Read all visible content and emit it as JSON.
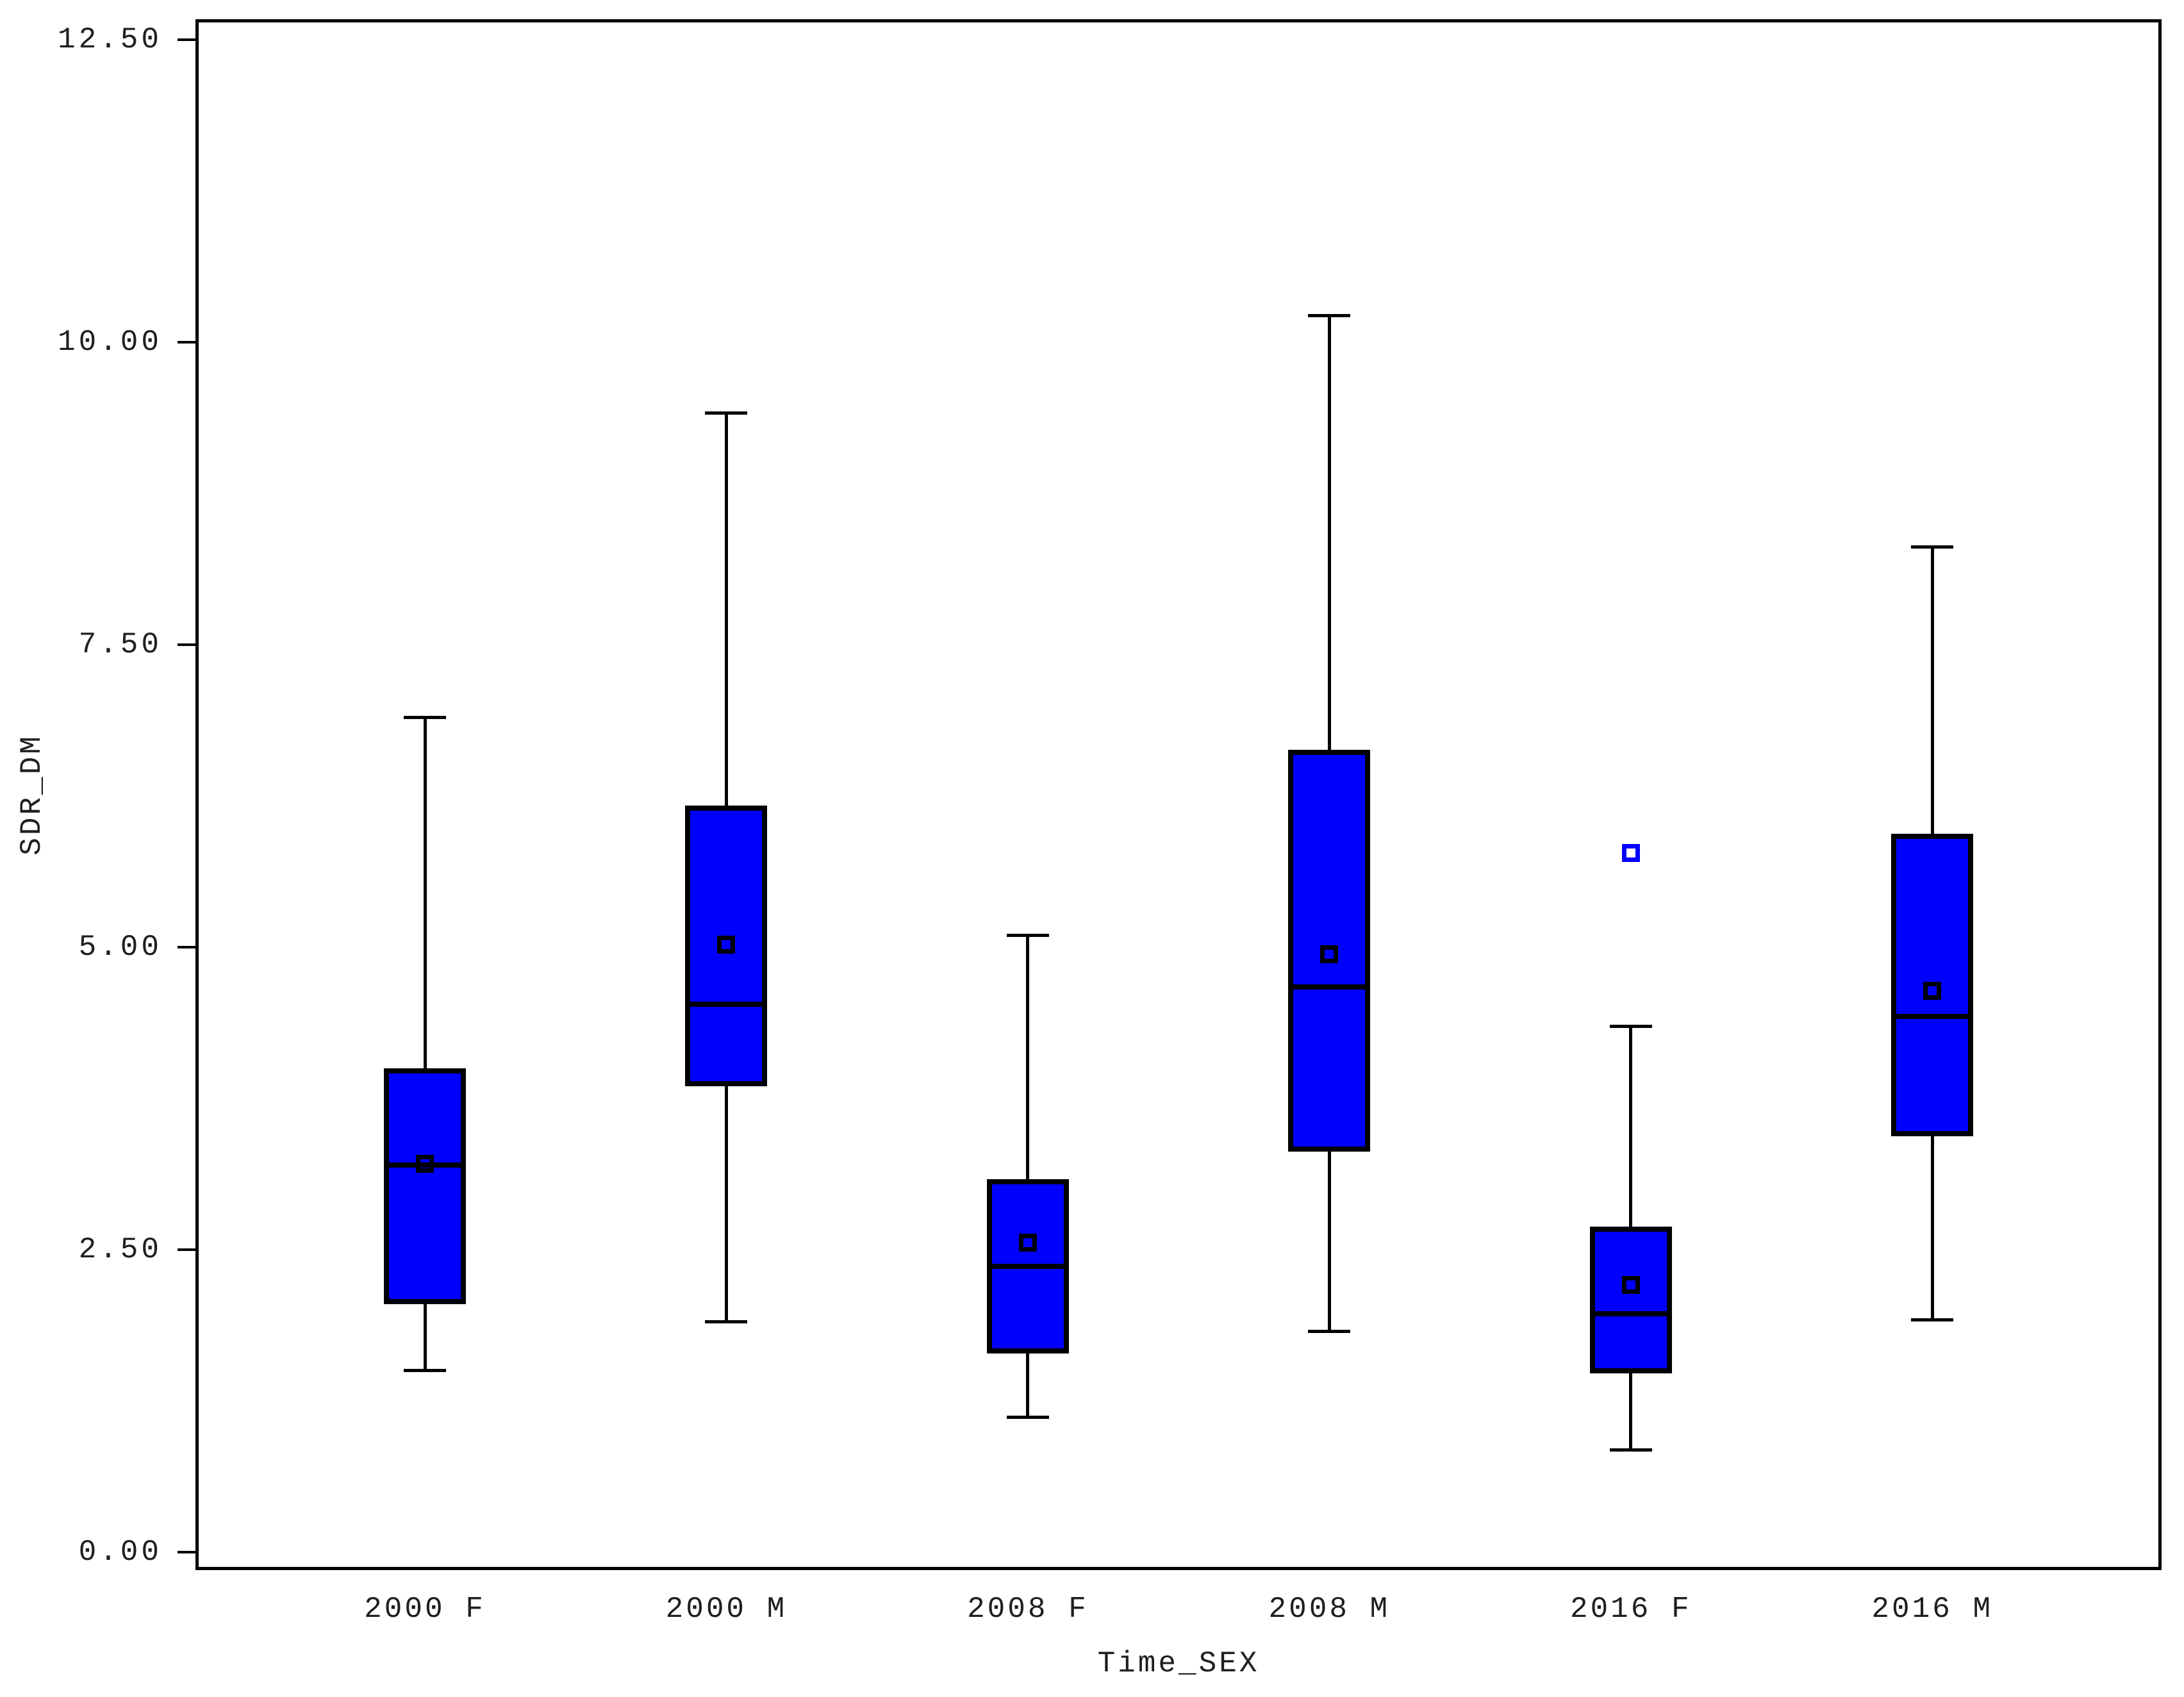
{
  "chart_data": {
    "type": "box",
    "title": "",
    "xlabel": "Time_SEX",
    "ylabel": "SDR_DM",
    "categories": [
      "2000 F",
      "2000 M",
      "2008 F",
      "2008 M",
      "2016 F",
      "2016 M"
    ],
    "y_ticks": [
      "0.00",
      "2.50",
      "5.00",
      "7.50",
      "10.00",
      "12.50"
    ],
    "ylim": [
      0,
      12.5
    ],
    "grid": false,
    "legend_position": "none",
    "box_fill_color": "#0000FF",
    "line_color": "#000000",
    "outlier_color": "#0000FF",
    "series": [
      {
        "category": "2000 F",
        "whisker_low": 1.5,
        "q1": 2.05,
        "median": 3.2,
        "mean": 3.21,
        "q3": 4.0,
        "whisker_high": 6.9,
        "outliers": []
      },
      {
        "category": "2000 M",
        "whisker_low": 1.9,
        "q1": 3.85,
        "median": 4.53,
        "mean": 5.02,
        "q3": 6.17,
        "whisker_high": 9.42,
        "outliers": []
      },
      {
        "category": "2008 F",
        "whisker_low": 1.11,
        "q1": 1.64,
        "median": 2.36,
        "mean": 2.56,
        "q3": 3.08,
        "whisker_high": 5.1,
        "outliers": []
      },
      {
        "category": "2008 M",
        "whisker_low": 1.82,
        "q1": 3.31,
        "median": 4.67,
        "mean": 4.94,
        "q3": 6.63,
        "whisker_high": 10.22,
        "outliers": []
      },
      {
        "category": "2016 F",
        "whisker_low": 0.84,
        "q1": 1.48,
        "median": 1.97,
        "mean": 2.21,
        "q3": 2.69,
        "whisker_high": 4.35,
        "outliers": [
          5.78
        ]
      },
      {
        "category": "2016 M",
        "whisker_low": 1.92,
        "q1": 3.44,
        "median": 4.43,
        "mean": 4.64,
        "q3": 5.94,
        "whisker_high": 8.31,
        "outliers": []
      }
    ]
  }
}
